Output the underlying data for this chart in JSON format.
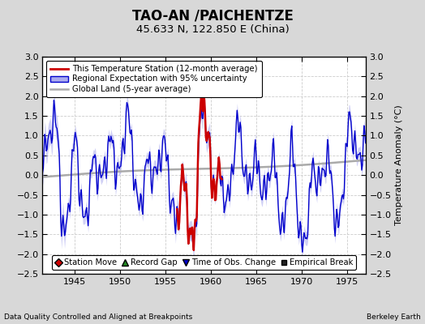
{
  "title": "TAO-AN /PAICHENTZE",
  "subtitle": "45.633 N, 122.850 E (China)",
  "ylabel": "Temperature Anomaly (°C)",
  "xlabel_left": "Data Quality Controlled and Aligned at Breakpoints",
  "xlabel_right": "Berkeley Earth",
  "ylim": [
    -2.5,
    3.0
  ],
  "xlim": [
    1941.5,
    1977.0
  ],
  "xticks": [
    1945,
    1950,
    1955,
    1960,
    1965,
    1970,
    1975
  ],
  "yticks": [
    -2.5,
    -2,
    -1.5,
    -1,
    -0.5,
    0,
    0.5,
    1,
    1.5,
    2,
    2.5,
    3
  ],
  "bg_color": "#d8d8d8",
  "plot_bg_color": "#ffffff",
  "regional_color": "#0000cc",
  "regional_fill_color": "#aaaaee",
  "station_color": "#cc0000",
  "global_color": "#aaaaaa",
  "legend1_items": [
    {
      "label": "This Temperature Station (12-month average)",
      "color": "#cc0000",
      "lw": 2.0
    },
    {
      "label": "Regional Expectation with 95% uncertainty",
      "color": "#0000cc",
      "fill": "#aaaaee"
    },
    {
      "label": "Global Land (5-year average)",
      "color": "#aaaaaa",
      "lw": 1.5
    }
  ],
  "legend2_items": [
    {
      "label": "Station Move",
      "marker": "D",
      "color": "#cc0000"
    },
    {
      "label": "Record Gap",
      "marker": "^",
      "color": "#228822"
    },
    {
      "label": "Time of Obs. Change",
      "marker": "v",
      "color": "#0000cc"
    },
    {
      "label": "Empirical Break",
      "marker": "s",
      "color": "#222222"
    }
  ],
  "grid_color": "#cccccc",
  "grid_style": "--"
}
